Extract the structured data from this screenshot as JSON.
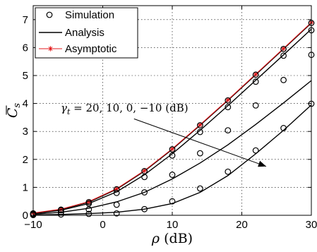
{
  "chart_data": {
    "type": "line",
    "xlabel_symbol": "ρ",
    "xlabel_unit": "(dB)",
    "ylabel_symbol": "C",
    "ylabel_subscript": "s",
    "xlim": [
      -10,
      30
    ],
    "ylim": [
      0,
      7.5
    ],
    "xticks": [
      "−10",
      "0",
      "10",
      "20",
      "30"
    ],
    "xtick_values": [
      -10,
      0,
      10,
      20,
      30
    ],
    "yticks": [
      "0",
      "1",
      "2",
      "3",
      "4",
      "5",
      "6",
      "7"
    ],
    "ytick_values": [
      0,
      1,
      2,
      3,
      4,
      5,
      6,
      7
    ],
    "grid": true,
    "legend_placement": "top-left",
    "legend": [
      {
        "label": "Simulation",
        "style": "circle-marker",
        "color": "#000000"
      },
      {
        "label": "Analysis",
        "style": "solid-line",
        "color": "#000000"
      },
      {
        "label": "Asymptotic",
        "style": "line-star",
        "color": "#e31a1c"
      }
    ],
    "annotation": {
      "text": "γt = 20, 10, 0, −10 (dB)",
      "gamma_symbol": "γ",
      "gamma_subscript": "t",
      "values_text": " = 20, 10, 0, −10 (dB)",
      "arrow_from": [
        4.5,
        3.45
      ],
      "arrow_to": [
        23.5,
        1.75
      ]
    },
    "x": [
      -10,
      -6,
      -2,
      2,
      6,
      10,
      14,
      18,
      22,
      26,
      30
    ],
    "series": [
      {
        "gamma_db": 20,
        "values": [
          0.07,
          0.2,
          0.47,
          0.93,
          1.58,
          2.36,
          3.22,
          4.11,
          5.03,
          5.95,
          6.88
        ]
      },
      {
        "gamma_db": 10,
        "values": [
          0.06,
          0.18,
          0.42,
          0.84,
          1.45,
          2.2,
          3.04,
          3.92,
          4.83,
          5.74,
          6.66
        ]
      },
      {
        "gamma_db": 0,
        "values": [
          0.04,
          0.11,
          0.25,
          0.48,
          0.82,
          1.3,
          1.87,
          2.52,
          3.25,
          4.02,
          4.82
        ]
      },
      {
        "gamma_db": -10,
        "values": [
          0.01,
          0.03,
          0.06,
          0.11,
          0.22,
          0.42,
          0.82,
          1.42,
          2.2,
          3.04,
          3.95
        ]
      }
    ],
    "asymptotic": {
      "values": [
        0.08,
        0.22,
        0.49,
        0.95,
        1.6,
        2.38,
        3.24,
        4.13,
        5.05,
        5.97,
        6.9
      ]
    },
    "simulation_markers": [
      {
        "gamma_db": 20,
        "values": [
          0.07,
          0.2,
          0.47,
          0.93,
          1.58,
          2.36,
          3.22,
          4.11,
          5.03,
          5.95,
          6.88
        ]
      },
      {
        "gamma_db": 10,
        "values": [
          0.06,
          0.18,
          0.42,
          0.8,
          1.37,
          2.14,
          2.98,
          3.87,
          4.78,
          5.71,
          6.62
        ]
      },
      {
        "gamma_db": 0,
        "values": [
          0.04,
          0.11,
          0.21,
          0.38,
          0.82,
          1.45,
          2.22,
          3.04,
          3.93,
          4.84,
          5.74
        ]
      },
      {
        "gamma_db": -10,
        "values": [
          0.01,
          0.03,
          0.05,
          0.07,
          0.22,
          0.5,
          0.96,
          1.56,
          2.32,
          3.12,
          3.99
        ]
      }
    ]
  }
}
